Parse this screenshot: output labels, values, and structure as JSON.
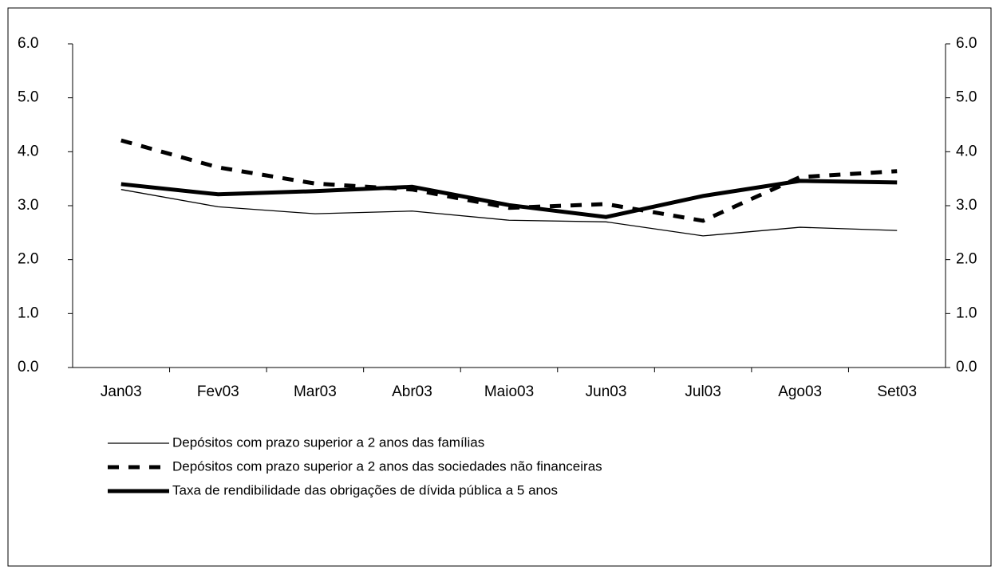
{
  "chart_data": {
    "type": "line",
    "categories": [
      "Jan03",
      "Fev03",
      "Mar03",
      "Abr03",
      "Maio03",
      "Jun03",
      "Jul03",
      "Ago03",
      "Set03"
    ],
    "series": [
      {
        "name": "Depósitos com prazo superior a  2 anos das famílias",
        "color": "#000000",
        "style": "thin",
        "values": [
          3.3,
          2.98,
          2.85,
          2.9,
          2.73,
          2.7,
          2.44,
          2.6,
          2.54
        ]
      },
      {
        "name": "Depósitos com prazo superior a 2 anos das sociedades não financeiras",
        "color": "#000000",
        "style": "dashed",
        "values": [
          4.21,
          3.71,
          3.41,
          3.3,
          2.96,
          3.03,
          2.72,
          3.53,
          3.64
        ]
      },
      {
        "name": "Taxa de rendibilidade das obrigações de dívida pública a 5 anos",
        "color": "#000000",
        "style": "thick",
        "values": [
          3.4,
          3.21,
          3.27,
          3.35,
          3.01,
          2.79,
          3.18,
          3.46,
          3.43
        ]
      }
    ],
    "ylim": [
      0,
      6
    ],
    "yticks": [
      {
        "value": 0,
        "label": "0.0"
      },
      {
        "value": 1,
        "label": "1.0"
      },
      {
        "value": 2,
        "label": "2.0"
      },
      {
        "value": 3,
        "label": "3.0"
      },
      {
        "value": 4,
        "label": "4.0"
      },
      {
        "value": 5,
        "label": "5.0"
      },
      {
        "value": 6,
        "label": "6.0"
      }
    ],
    "y2lim": [
      0,
      6
    ],
    "y2ticks": [
      {
        "value": 0,
        "label": "0.0"
      },
      {
        "value": 1,
        "label": "1.0"
      },
      {
        "value": 2,
        "label": "2.0"
      },
      {
        "value": 3,
        "label": "3.0"
      },
      {
        "value": 4,
        "label": "4.0"
      },
      {
        "value": 5,
        "label": "5.0"
      },
      {
        "value": 6,
        "label": "6.0"
      }
    ],
    "grid": false
  }
}
